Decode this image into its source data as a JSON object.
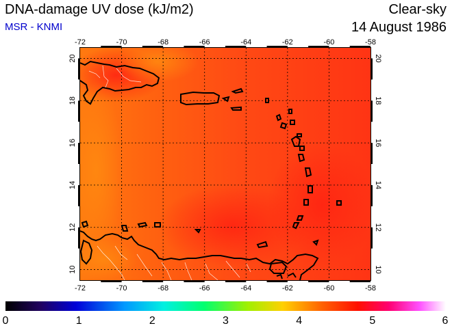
{
  "header": {
    "title": "DNA-damage UV dose (kJ/m2)",
    "source": "MSR - KNMI",
    "condition": "Clear-sky",
    "date": "14 August 1986"
  },
  "map": {
    "lon_range": [
      -72,
      -58
    ],
    "lat_range": [
      9.5,
      20.5
    ],
    "lon_ticks": [
      "-72",
      "-70",
      "-68",
      "-66",
      "-64",
      "-62",
      "-60",
      "-58"
    ],
    "lat_ticks": [
      "10",
      "12",
      "14",
      "16",
      "18",
      "20"
    ],
    "grid": "dotted",
    "land_color": "#000000",
    "dose_range_kJm2": [
      4.0,
      4.5
    ]
  },
  "colorbar": {
    "min": 0,
    "max": 6,
    "labels": [
      "0",
      "1",
      "2",
      "3",
      "4",
      "5",
      "6"
    ],
    "colors": [
      "#000000",
      "#0000c8",
      "#00c8ff",
      "#00ff90",
      "#b8f000",
      "#ffb000",
      "#ff3000",
      "#ff0090",
      "#ff80ff",
      "#ffffff"
    ]
  }
}
